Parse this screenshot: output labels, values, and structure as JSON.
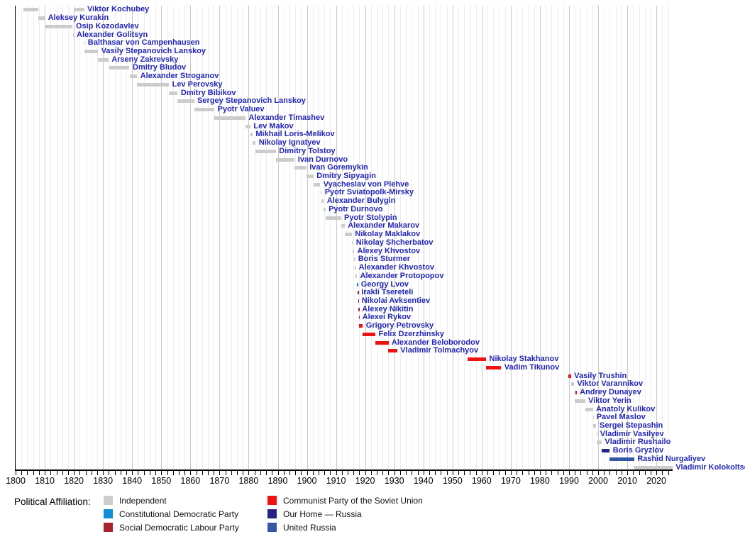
{
  "chart_data": {
    "type": "bar",
    "subtype": "gantt-timeline",
    "title": "",
    "legend_title": "Political Affiliation:",
    "x_axis": {
      "min": 1800,
      "max": 2025.6,
      "major_tick_interval": 10,
      "minor_tick_interval": 2,
      "tick_labels": [
        "1800",
        "1810",
        "1820",
        "1830",
        "1840",
        "1850",
        "1860",
        "1870",
        "1880",
        "1890",
        "1900",
        "1910",
        "1920",
        "1930",
        "1940",
        "1950",
        "1960",
        "1970",
        "1980",
        "1990",
        "2000",
        "2010",
        "2020"
      ],
      "grid": "on"
    },
    "label_color": "#2326b4",
    "parties": {
      "independent": {
        "label": "Independent",
        "color": "#cccccc"
      },
      "kadet": {
        "label": "Constitutional Democratic Party",
        "color": "#0d8ed6"
      },
      "sdlp": {
        "label": "Social Democratic Labour Party",
        "color": "#a6232b"
      },
      "cpsu": {
        "label": "Communist Party of the Soviet Union",
        "color": "#ee1212"
      },
      "our_home": {
        "label": "Our Home — Russia",
        "color": "#262386"
      },
      "united_russia": {
        "label": "United Russia",
        "color": "#3356a6"
      }
    },
    "legend_columns": [
      [
        "independent",
        "kadet",
        "sdlp"
      ],
      [
        "cpsu",
        "our_home",
        "united_russia"
      ]
    ],
    "people": [
      {
        "name": "Viktor Kochubey",
        "party": "independent",
        "terms": [
          [
            1802.7,
            1807.9
          ],
          [
            1819.85,
            1823.5
          ]
        ]
      },
      {
        "name": "Aleksey Kurakin",
        "party": "independent",
        "terms": [
          [
            1807.9,
            1810.0
          ]
        ]
      },
      {
        "name": "Osip Kozodavlev",
        "party": "independent",
        "terms": [
          [
            1810.0,
            1819.6
          ]
        ]
      },
      {
        "name": "Alexander Golitsyn",
        "party": "independent",
        "terms": [
          [
            1819.6,
            1819.85
          ]
        ]
      },
      {
        "name": "Balthasar von Campenhausen",
        "party": "independent",
        "terms": [
          [
            1823.5,
            1823.7
          ]
        ]
      },
      {
        "name": "Vasily Stepanovich Lanskoy",
        "party": "independent",
        "terms": [
          [
            1823.7,
            1828.3
          ]
        ]
      },
      {
        "name": "Arseny Zakrevsky",
        "party": "independent",
        "terms": [
          [
            1828.3,
            1831.85
          ]
        ]
      },
      {
        "name": "Dmitry Bludov",
        "party": "independent",
        "terms": [
          [
            1832.1,
            1839.1
          ]
        ]
      },
      {
        "name": "Alexander Stroganov",
        "party": "independent",
        "terms": [
          [
            1839.2,
            1841.7
          ]
        ]
      },
      {
        "name": "Lev Perovsky",
        "party": "independent",
        "terms": [
          [
            1841.7,
            1852.65
          ]
        ]
      },
      {
        "name": "Dmitry Bibikov",
        "party": "independent",
        "terms": [
          [
            1852.65,
            1855.65
          ]
        ]
      },
      {
        "name": "Sergey Stepanovich Lanskoy",
        "party": "independent",
        "terms": [
          [
            1855.65,
            1861.3
          ]
        ]
      },
      {
        "name": "Pyotr Valuev",
        "party": "independent",
        "terms": [
          [
            1861.3,
            1868.2
          ]
        ]
      },
      {
        "name": "Alexander Timashev",
        "party": "independent",
        "terms": [
          [
            1868.2,
            1878.9
          ]
        ]
      },
      {
        "name": "Lev Makov",
        "party": "independent",
        "terms": [
          [
            1878.9,
            1880.6
          ]
        ]
      },
      {
        "name": "Mikhail Loris-Melikov",
        "party": "independent",
        "terms": [
          [
            1880.6,
            1881.35
          ]
        ]
      },
      {
        "name": "Nikolay Ignatyev",
        "party": "independent",
        "terms": [
          [
            1881.35,
            1882.4
          ]
        ]
      },
      {
        "name": "Dimitry Tolstoy",
        "party": "independent",
        "terms": [
          [
            1882.4,
            1889.35
          ]
        ]
      },
      {
        "name": "Ivan Durnovo",
        "party": "independent",
        "terms": [
          [
            1889.35,
            1895.8
          ]
        ]
      },
      {
        "name": "Ivan Goremykin",
        "party": "independent",
        "terms": [
          [
            1895.8,
            1899.8
          ]
        ]
      },
      {
        "name": "Dmitry Sipyagin",
        "party": "independent",
        "terms": [
          [
            1899.8,
            1902.25
          ]
        ]
      },
      {
        "name": "Vyacheslav von Plehve",
        "party": "independent",
        "terms": [
          [
            1902.25,
            1904.55
          ]
        ]
      },
      {
        "name": "Pyotr Sviatopolk-Mirsky",
        "party": "independent",
        "terms": [
          [
            1904.65,
            1905.05
          ]
        ]
      },
      {
        "name": "Alexander Bulygin",
        "party": "independent",
        "terms": [
          [
            1905.05,
            1905.8
          ]
        ]
      },
      {
        "name": "Pyotr Durnovo",
        "party": "independent",
        "terms": [
          [
            1905.8,
            1906.35
          ]
        ]
      },
      {
        "name": "Pyotr Stolypin",
        "party": "independent",
        "terms": [
          [
            1906.35,
            1911.7
          ]
        ]
      },
      {
        "name": "Alexander Makarov",
        "party": "independent",
        "terms": [
          [
            1911.7,
            1912.95
          ]
        ]
      },
      {
        "name": "Nikolay Maklakov",
        "party": "independent",
        "terms": [
          [
            1912.95,
            1915.45
          ]
        ]
      },
      {
        "name": "Nikolay Shcherbatov",
        "party": "independent",
        "terms": [
          [
            1915.45,
            1915.75
          ]
        ]
      },
      {
        "name": "Alexey Khvostov",
        "party": "independent",
        "terms": [
          [
            1915.75,
            1916.2
          ]
        ]
      },
      {
        "name": "Boris Sturmer",
        "party": "independent",
        "terms": [
          [
            1916.2,
            1916.5
          ]
        ]
      },
      {
        "name": "Alexander Khvostov",
        "party": "independent",
        "terms": [
          [
            1916.5,
            1916.7
          ]
        ]
      },
      {
        "name": "Alexander Protopopov",
        "party": "independent",
        "terms": [
          [
            1916.7,
            1917.17
          ]
        ]
      },
      {
        "name": "Georgy Lvov",
        "party": "kadet",
        "terms": [
          [
            1917.17,
            1917.5
          ]
        ]
      },
      {
        "name": "Irakli Tsereteli",
        "party": "sdlp",
        "terms": [
          [
            1917.5,
            1917.6
          ]
        ]
      },
      {
        "name": "Nikolai Avksentiev",
        "party": "sdlp",
        "terms": [
          [
            1917.6,
            1917.72
          ]
        ]
      },
      {
        "name": "Alexey Nikitin",
        "party": "sdlp",
        "terms": [
          [
            1917.72,
            1917.85
          ]
        ]
      },
      {
        "name": "Alexei Rykov",
        "party": "cpsu",
        "terms": [
          [
            1917.85,
            1917.95
          ]
        ]
      },
      {
        "name": "Grigory Petrovsky",
        "party": "cpsu",
        "terms": [
          [
            1917.95,
            1919.2
          ]
        ]
      },
      {
        "name": "Felix Dzerzhinsky",
        "party": "cpsu",
        "terms": [
          [
            1919.2,
            1923.5
          ]
        ]
      },
      {
        "name": "Alexander Beloborodov",
        "party": "cpsu",
        "terms": [
          [
            1923.5,
            1928.0
          ]
        ]
      },
      {
        "name": "Vladimir Tolmachyov",
        "party": "cpsu",
        "terms": [
          [
            1928.0,
            1931.0
          ]
        ]
      },
      {
        "name": "Nikolay Stakhanov",
        "party": "cpsu",
        "terms": [
          [
            1955.1,
            1961.5
          ]
        ]
      },
      {
        "name": "Vadim Tikunov",
        "party": "cpsu",
        "terms": [
          [
            1961.5,
            1966.7
          ]
        ]
      },
      {
        "name": "Vasily Trushin",
        "party": "cpsu",
        "terms": [
          [
            1989.8,
            1990.7
          ]
        ]
      },
      {
        "name": "Viktor Varannikov",
        "party": "independent",
        "terms": [
          [
            1990.7,
            1991.7
          ]
        ]
      },
      {
        "name": "Andrey Dunayev",
        "party": "cpsu",
        "terms": [
          [
            1992.15,
            1992.6
          ]
        ]
      },
      {
        "name": "Viktor Yerin",
        "party": "independent",
        "terms": [
          [
            1992.05,
            1995.5
          ]
        ]
      },
      {
        "name": "Anatoly Kulikov",
        "party": "independent",
        "terms": [
          [
            1995.5,
            1998.2
          ]
        ]
      },
      {
        "name": "Pavel Maslov",
        "party": "independent",
        "terms": [
          [
            1998.2,
            1998.35
          ]
        ]
      },
      {
        "name": "Sergei Stepashin",
        "party": "independent",
        "terms": [
          [
            1998.35,
            1999.4
          ]
        ]
      },
      {
        "name": "Vladimir Vasilyev",
        "party": "independent",
        "terms": [
          [
            1999.4,
            1999.55
          ]
        ]
      },
      {
        "name": "Vladimir Rushailo",
        "party": "independent",
        "terms": [
          [
            1999.55,
            2001.2
          ]
        ]
      },
      {
        "name": "Boris Gryzlov",
        "party": "our_home",
        "terms": [
          [
            2001.2,
            2003.95
          ]
        ]
      },
      {
        "name": "Rashid Nurgaliyev",
        "party": "united_russia",
        "terms": [
          [
            2003.95,
            2012.35
          ]
        ]
      },
      {
        "name": "Vladimir Kolokoltsev",
        "party": "independent",
        "terms": [
          [
            2012.35,
            2025.5
          ]
        ]
      }
    ]
  }
}
